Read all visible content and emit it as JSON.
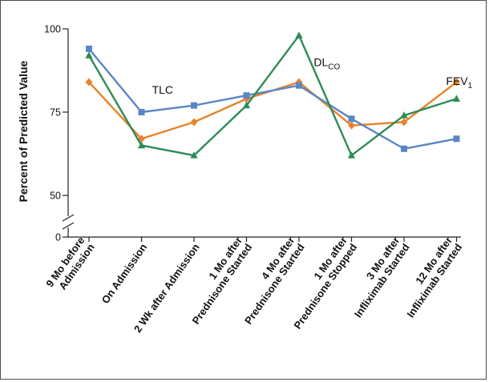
{
  "chart_data": {
    "type": "line",
    "ylabel": "Percent of Predicted Value",
    "xlabel": "",
    "ylim": [
      50,
      100
    ],
    "yticks": [
      {
        "value": 100,
        "label": "100"
      },
      {
        "value": 75,
        "label": "75"
      },
      {
        "value": 50,
        "label": "50"
      }
    ],
    "baseline_tick": {
      "value": 0,
      "label": "0"
    },
    "axis_break": true,
    "grid": false,
    "categories": [
      [
        "9 Mo before",
        "Admission"
      ],
      [
        "On Admission"
      ],
      [
        "2 Wk after Admission"
      ],
      [
        "1 Mo after",
        "Prednisone Started"
      ],
      [
        "4 Mo after",
        "Prednisone Started"
      ],
      [
        "1 Mo after",
        "Prednisone Stopped"
      ],
      [
        "3 Mo after",
        "Infliximab Started"
      ],
      [
        "12 Mo after",
        "Infliximab Started"
      ]
    ],
    "series": [
      {
        "name": "TLC",
        "label_main": "TLC",
        "label_sub": "",
        "label_at": [
          1.2,
          80.5
        ],
        "color": "#5b86c5",
        "marker": "square",
        "values": [
          94,
          75,
          77,
          80,
          83,
          73,
          64,
          67
        ]
      },
      {
        "name": "DLCO",
        "label_main": "DL",
        "label_sub": "CO",
        "label_at": [
          4.28,
          88.8
        ],
        "color": "#2e8b57",
        "marker": "triangle",
        "values": [
          92,
          65,
          62,
          77,
          98,
          62,
          74,
          79
        ]
      },
      {
        "name": "FEV1",
        "label_main": "FEV",
        "label_sub": "1",
        "label_at": [
          6.8,
          83.2
        ],
        "color": "#e8822a",
        "marker": "diamond",
        "values": [
          84,
          67,
          72,
          79,
          84,
          71,
          72,
          84
        ]
      }
    ]
  }
}
